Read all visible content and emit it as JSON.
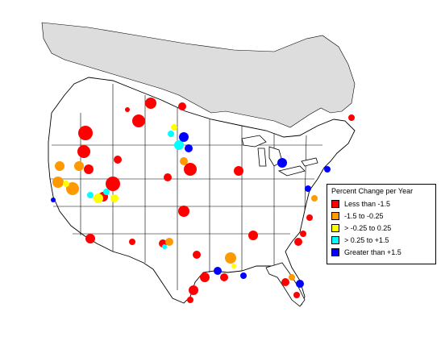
{
  "legend": {
    "title": "Percent Change per Year",
    "items": [
      {
        "label": "Less than -1.5",
        "color": "#ff0000"
      },
      {
        "label": "-1.5 to -0.25",
        "color": "#ff9900"
      },
      {
        "label": "> -0.25 to 0.25",
        "color": "#ffff00"
      },
      {
        "label": "> 0.25 to +1.5",
        "color": "#00ffff"
      },
      {
        "label": "Greater than +1.5",
        "color": "#0000ff"
      }
    ]
  },
  "colors": {
    "land": "#ffffff",
    "northern_shade": "#dddddd",
    "boundary": "#000000"
  }
}
